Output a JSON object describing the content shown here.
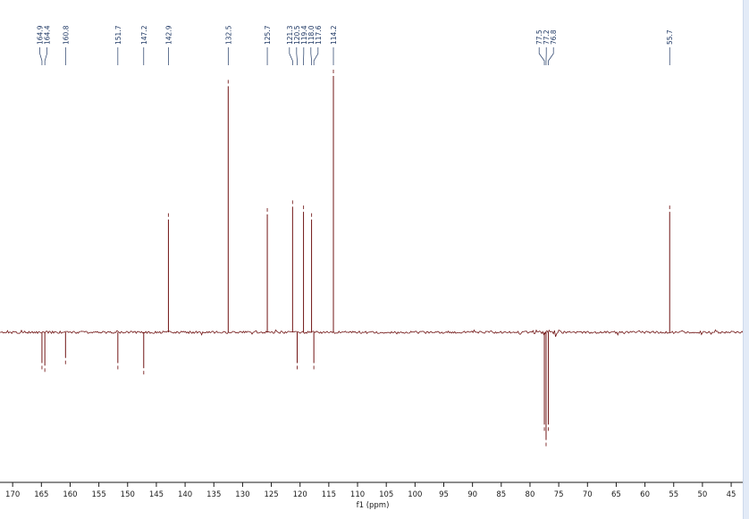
{
  "chart_data": {
    "type": "line",
    "kind": "13C NMR (APT/DEPT) spectrum",
    "title": "",
    "xlabel": "f1 (ppm)",
    "ylabel": "",
    "grid": false,
    "legend": null,
    "xlim": [
      172.2,
      41.9
    ],
    "x_ticks": [
      170,
      165,
      160,
      155,
      150,
      145,
      140,
      135,
      130,
      125,
      120,
      115,
      110,
      105,
      100,
      95,
      90,
      85,
      80,
      75,
      70,
      65,
      60,
      55,
      50,
      45
    ],
    "colors": {
      "spectrum": "#701414",
      "labels": "#1f3864",
      "axis": "#1a1a1a",
      "background": "#ffffff"
    },
    "peaks": [
      {
        "ppm": 164.9,
        "intensity": -0.12,
        "label": "164.9"
      },
      {
        "ppm": 164.4,
        "intensity": -0.13,
        "label": "164.4"
      },
      {
        "ppm": 160.8,
        "intensity": -0.1,
        "label": "160.8"
      },
      {
        "ppm": 151.7,
        "intensity": -0.12,
        "label": "151.7"
      },
      {
        "ppm": 147.2,
        "intensity": -0.14,
        "label": "147.2"
      },
      {
        "ppm": 142.9,
        "intensity": 0.44,
        "label": "142.9"
      },
      {
        "ppm": 132.5,
        "intensity": 0.96,
        "label": "132.5"
      },
      {
        "ppm": 125.7,
        "intensity": 0.46,
        "label": "125.7"
      },
      {
        "ppm": 121.3,
        "intensity": 0.49,
        "label": "121.3"
      },
      {
        "ppm": 120.5,
        "intensity": -0.12,
        "label": "120.5"
      },
      {
        "ppm": 119.4,
        "intensity": 0.47,
        "label": "119.4"
      },
      {
        "ppm": 118.0,
        "intensity": 0.44,
        "label": "118.0"
      },
      {
        "ppm": 117.6,
        "intensity": -0.12,
        "label": "117.6"
      },
      {
        "ppm": 114.2,
        "intensity": 1.0,
        "label": "114.2"
      },
      {
        "ppm": 77.5,
        "intensity": -0.36,
        "label": "77.5"
      },
      {
        "ppm": 77.2,
        "intensity": -0.42,
        "label": "77.2"
      },
      {
        "ppm": 76.8,
        "intensity": -0.36,
        "label": "76.8"
      },
      {
        "ppm": 55.7,
        "intensity": 0.47,
        "label": "55.7"
      }
    ]
  }
}
